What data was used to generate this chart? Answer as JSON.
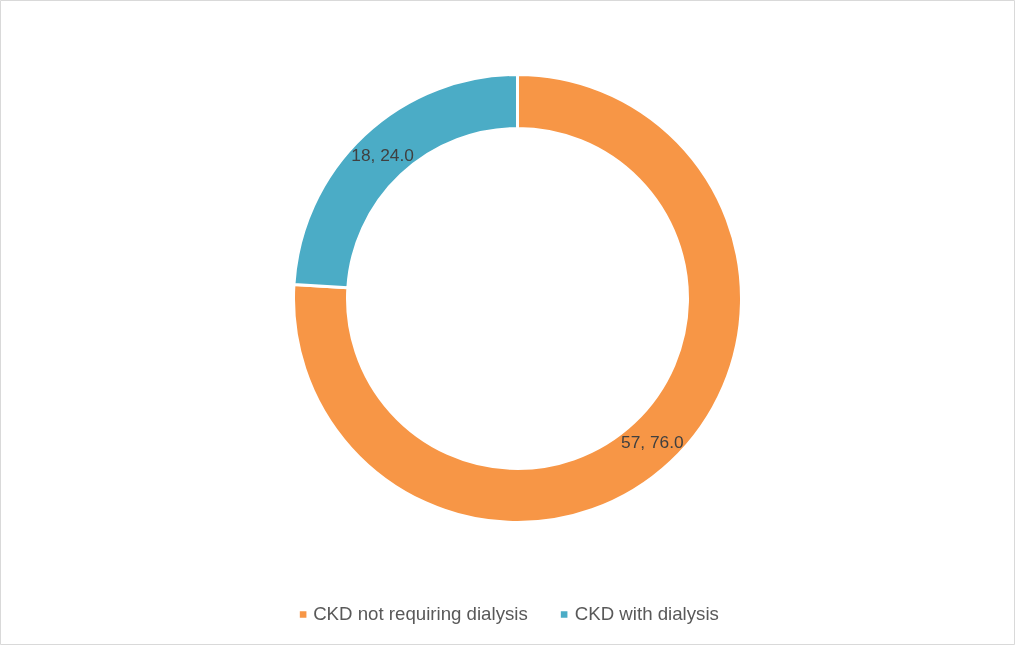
{
  "chart_data": {
    "type": "donut",
    "categories": [
      "CKD not requiring dialysis",
      "CKD with dialysis"
    ],
    "values": [
      57,
      18
    ],
    "colors": [
      "#f79646",
      "#4bacc6"
    ],
    "value_labels": [
      "57, 76.0",
      "18, 24.0"
    ],
    "legend": "bottom"
  }
}
